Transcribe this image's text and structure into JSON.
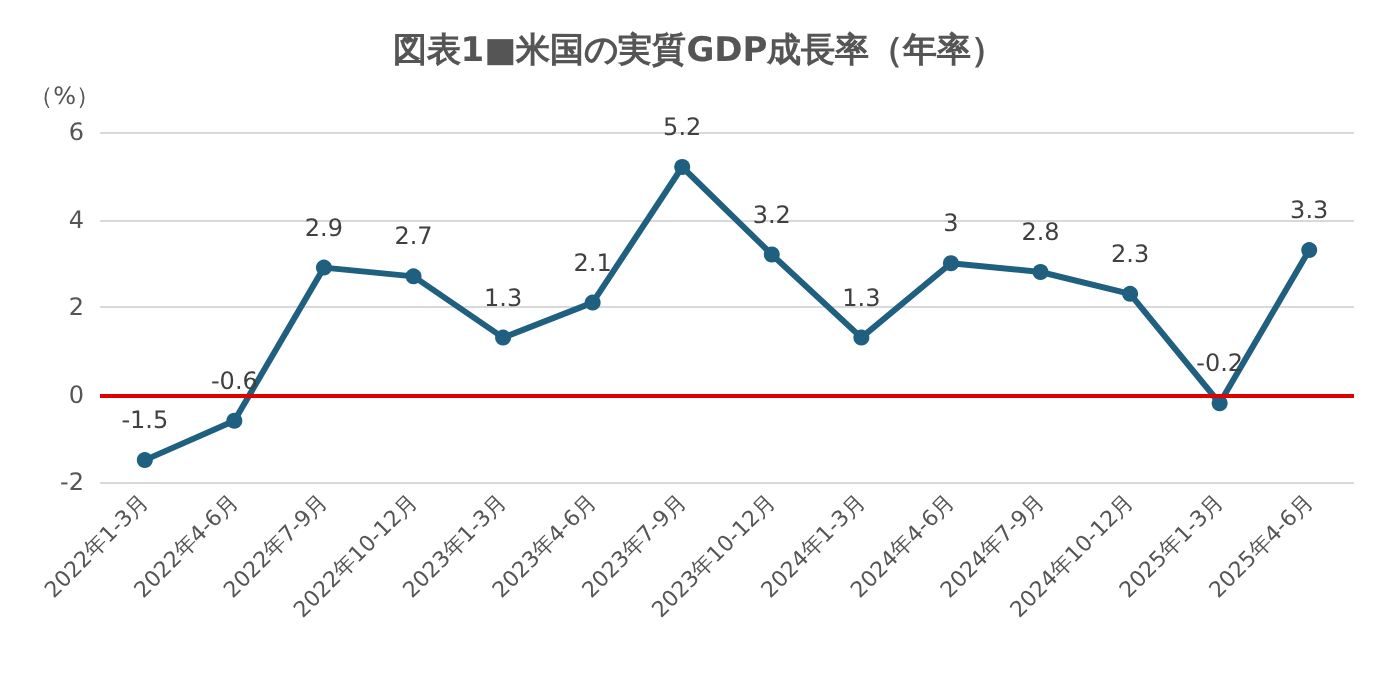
{
  "chart_data": {
    "type": "line",
    "title": "図表1■米国の実質GDP成長率（年率）",
    "ylabel": "（%）",
    "categories": [
      "2022年1-3月",
      "2022年4-6月",
      "2022年7-9月",
      "2022年10-12月",
      "2023年1-3月",
      "2023年4-6月",
      "2023年7-9月",
      "2023年10-12月",
      "2024年1-3月",
      "2024年4-6月",
      "2024年7-9月",
      "2024年10-12月",
      "2025年1-3月",
      "2025年4-6月"
    ],
    "series": [
      {
        "color": "#1f5f7f",
        "values": [
          -1.5,
          -0.6,
          2.9,
          2.7,
          1.3,
          2.1,
          5.2,
          3.2,
          1.3,
          3,
          2.8,
          2.3,
          -0.2,
          3.3
        ]
      }
    ],
    "ylim": [
      -2,
      6
    ],
    "yticks": [
      -2,
      0,
      2,
      4,
      6
    ],
    "grid": "y",
    "marker": "circle",
    "line_style": "solid",
    "data_labels": true,
    "ref_lines": [
      {
        "axis": "y",
        "value": 0,
        "color": "#e00000",
        "line_style": "solid"
      }
    ]
  }
}
